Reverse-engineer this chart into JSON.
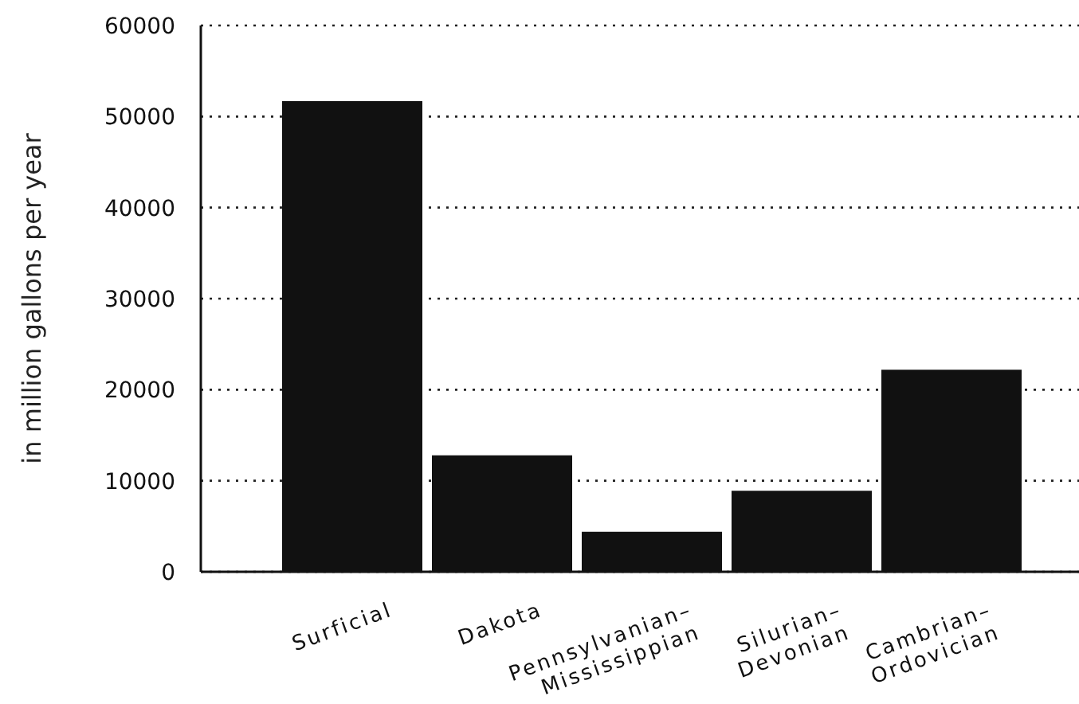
{
  "chart_data": {
    "type": "bar",
    "ylabel": "in million gallons per year",
    "categories": [
      "Surficial",
      "Dakota",
      "Pennsylvanian–\nMississippian",
      "Silurian–\nDevonian",
      "Cambrian–\nOrdovician"
    ],
    "values": [
      51700,
      12800,
      4400,
      8900,
      22200
    ],
    "color": "#111111",
    "ylim": [
      0,
      60000
    ],
    "yticks": [
      0,
      10000,
      20000,
      30000,
      40000,
      50000,
      60000
    ],
    "grid": "y"
  }
}
